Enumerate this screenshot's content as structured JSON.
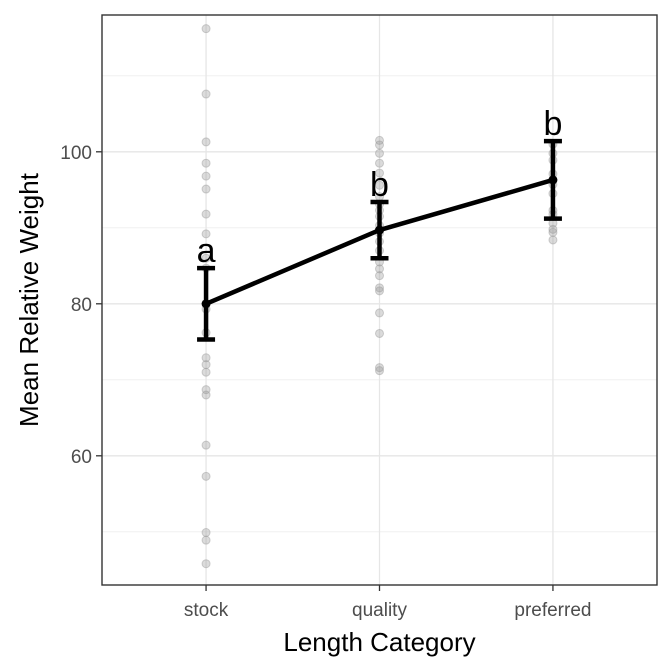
{
  "chart_data": {
    "type": "scatter",
    "xlabel": "Length Category",
    "ylabel": "Mean Relative Weight",
    "categories": [
      "stock",
      "quality",
      "preferred"
    ],
    "ylim": [
      43,
      118
    ],
    "yticks": [
      60,
      80,
      100
    ],
    "grid": true,
    "series": [
      {
        "type": "line",
        "means": [
          80,
          89.7,
          96.3
        ],
        "ci_low": [
          75.3,
          86.0,
          91.2
        ],
        "ci_high": [
          84.7,
          93.4,
          101.4
        ],
        "letters": [
          "a",
          "b",
          "b"
        ],
        "color": "#000000"
      },
      {
        "type": "points",
        "color": "#999999",
        "opacity": 0.35,
        "points": [
          {
            "cat": "stock",
            "y": 116.2
          },
          {
            "cat": "stock",
            "y": 107.6
          },
          {
            "cat": "stock",
            "y": 101.3
          },
          {
            "cat": "stock",
            "y": 98.5
          },
          {
            "cat": "stock",
            "y": 96.8
          },
          {
            "cat": "stock",
            "y": 95.1
          },
          {
            "cat": "stock",
            "y": 91.8
          },
          {
            "cat": "stock",
            "y": 89.2
          },
          {
            "cat": "stock",
            "y": 86.0
          },
          {
            "cat": "stock",
            "y": 84.7
          },
          {
            "cat": "stock",
            "y": 79.3
          },
          {
            "cat": "stock",
            "y": 76.2
          },
          {
            "cat": "stock",
            "y": 72.9
          },
          {
            "cat": "stock",
            "y": 72.0
          },
          {
            "cat": "stock",
            "y": 71.0
          },
          {
            "cat": "stock",
            "y": 68.7
          },
          {
            "cat": "stock",
            "y": 68.0
          },
          {
            "cat": "stock",
            "y": 61.4
          },
          {
            "cat": "stock",
            "y": 57.3
          },
          {
            "cat": "stock",
            "y": 49.9
          },
          {
            "cat": "stock",
            "y": 48.9
          },
          {
            "cat": "stock",
            "y": 45.8
          },
          {
            "cat": "quality",
            "y": 101.5
          },
          {
            "cat": "quality",
            "y": 100.9
          },
          {
            "cat": "quality",
            "y": 99.8
          },
          {
            "cat": "quality",
            "y": 98.5
          },
          {
            "cat": "quality",
            "y": 97.2
          },
          {
            "cat": "quality",
            "y": 95.6
          },
          {
            "cat": "quality",
            "y": 94.1
          },
          {
            "cat": "quality",
            "y": 93.1
          },
          {
            "cat": "quality",
            "y": 92.3
          },
          {
            "cat": "quality",
            "y": 91.5
          },
          {
            "cat": "quality",
            "y": 90.3
          },
          {
            "cat": "quality",
            "y": 89.3
          },
          {
            "cat": "quality",
            "y": 88.2
          },
          {
            "cat": "quality",
            "y": 87.0
          },
          {
            "cat": "quality",
            "y": 85.5
          },
          {
            "cat": "quality",
            "y": 84.6
          },
          {
            "cat": "quality",
            "y": 83.7
          },
          {
            "cat": "quality",
            "y": 82.1
          },
          {
            "cat": "quality",
            "y": 81.7
          },
          {
            "cat": "quality",
            "y": 78.8
          },
          {
            "cat": "quality",
            "y": 76.1
          },
          {
            "cat": "quality",
            "y": 71.6
          },
          {
            "cat": "quality",
            "y": 71.2
          },
          {
            "cat": "preferred",
            "y": 101.0
          },
          {
            "cat": "preferred",
            "y": 99.8
          },
          {
            "cat": "preferred",
            "y": 98.9
          },
          {
            "cat": "preferred",
            "y": 97.1
          },
          {
            "cat": "preferred",
            "y": 95.7
          },
          {
            "cat": "preferred",
            "y": 94.5
          },
          {
            "cat": "preferred",
            "y": 92.3
          },
          {
            "cat": "preferred",
            "y": 91.8
          },
          {
            "cat": "preferred",
            "y": 90.6
          },
          {
            "cat": "preferred",
            "y": 89.8
          },
          {
            "cat": "preferred",
            "y": 89.4
          },
          {
            "cat": "preferred",
            "y": 88.4
          }
        ]
      }
    ]
  }
}
